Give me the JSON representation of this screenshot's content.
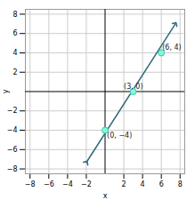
{
  "chart_data": {
    "type": "scatter",
    "xlabel": "x",
    "ylabel": "y",
    "xlim": [
      -8.5,
      8.5
    ],
    "ylim": [
      -8.5,
      8.5
    ],
    "xticks": [
      -8,
      -6,
      -4,
      -2,
      2,
      4,
      6,
      8
    ],
    "yticks": [
      -8,
      -6,
      -4,
      -2,
      2,
      4,
      6,
      8
    ],
    "grid": true,
    "series": [
      {
        "type": "line",
        "color": "#2e6b7a",
        "marker": "arrow",
        "x": [
          -2.0,
          7.5
        ],
        "values": [
          -7.33,
          7.0
        ]
      },
      {
        "type": "scatter",
        "color": "#7fffd4",
        "marker": "o",
        "x": [
          0,
          3,
          6
        ],
        "values": [
          -4,
          0,
          4
        ]
      }
    ],
    "annotations": [
      {
        "text": "(6, 4)",
        "x": 6.1,
        "y": 4.3
      },
      {
        "text": "(3, 0)",
        "x": 2.0,
        "y": 0.3
      },
      {
        "text": "(0, −4)",
        "x": 0.2,
        "y": -4.8
      }
    ]
  }
}
